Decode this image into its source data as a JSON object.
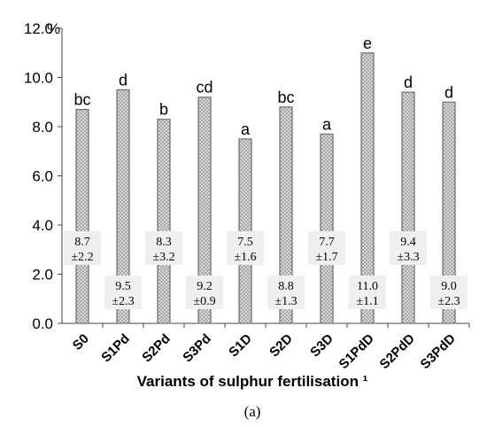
{
  "chart_data": {
    "type": "bar",
    "xlabel": "Variants of sulphur fertilisation ¹",
    "ylabel": "",
    "y_unit_label": "%",
    "ylim": [
      0,
      12
    ],
    "yticks": [
      "0.0",
      "2.0",
      "4.0",
      "6.0",
      "8.0",
      "10.0",
      "12.0"
    ],
    "categories": [
      "S0",
      "S1Pd",
      "S2Pd",
      "S3Pd",
      "S1D",
      "S2D",
      "S3D",
      "S1PdD",
      "S2PdD",
      "S3PdD"
    ],
    "values": [
      8.7,
      9.5,
      8.3,
      9.2,
      7.5,
      8.8,
      7.7,
      11.0,
      9.4,
      9.0
    ],
    "letters": [
      "bc",
      "d",
      "b",
      "cd",
      "a",
      "bc",
      "a",
      "e",
      "d",
      "d"
    ],
    "value_labels": [
      "8.7",
      "9.5",
      "8.3",
      "9.2",
      "7.5",
      "8.8",
      "7.7",
      "11.0",
      "9.4",
      "9.0"
    ],
    "sd_labels": [
      "±2.2",
      "±2.3",
      "±3.2",
      "±0.9",
      "±1.6",
      "±1.3",
      "±1.7",
      "±1.1",
      "±3.3",
      "±2.3"
    ],
    "grid": false,
    "legend": "none"
  },
  "caption": "(a)"
}
